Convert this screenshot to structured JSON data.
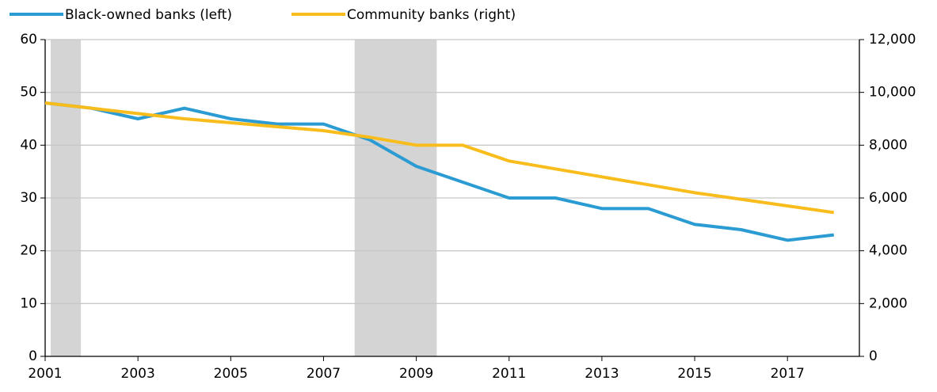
{
  "chart_data": {
    "type": "line",
    "x": [
      2001,
      2002,
      2003,
      2004,
      2005,
      2006,
      2007,
      2008,
      2009,
      2010,
      2011,
      2012,
      2013,
      2014,
      2015,
      2016,
      2017,
      2018
    ],
    "series": [
      {
        "name": "Black-owned banks (left)",
        "color": "#2b9bd3",
        "axis": "y",
        "values": [
          48,
          47,
          45,
          47,
          45,
          44,
          44,
          41,
          36,
          33,
          30,
          30,
          28,
          28,
          25,
          24,
          22,
          23
        ]
      },
      {
        "name": "Community banks (right)",
        "color": "#f8bd1c",
        "axis": "y2",
        "values": [
          9600,
          9400,
          9200,
          9000,
          8850,
          8700,
          8550,
          8300,
          8000,
          8000,
          7400,
          7100,
          6800,
          6500,
          6200,
          5950,
          5700,
          5450
        ]
      }
    ],
    "shaded_periods": [
      [
        2001.12,
        2001.77
      ],
      [
        2007.67,
        2009.44
      ]
    ],
    "shade_color": "#d4d4d4",
    "xlim": [
      2001,
      2018.55
    ],
    "xticks": [
      2001,
      2003,
      2005,
      2007,
      2009,
      2011,
      2013,
      2015,
      2017
    ],
    "ylim": [
      0,
      60
    ],
    "yticks": [
      0,
      10,
      20,
      30,
      40,
      50,
      60
    ],
    "y2lim": [
      0,
      12000
    ],
    "y2ticks": [
      0,
      {
        "value": 2000,
        "label": "2,000"
      },
      {
        "value": 4000,
        "label": "4,000"
      },
      {
        "value": 6000,
        "label": "6,000"
      },
      {
        "value": 8000,
        "label": "8,000"
      },
      {
        "value": 10000,
        "label": "10,000"
      },
      {
        "value": 12000,
        "label": "12,000"
      }
    ],
    "grid": true,
    "legend": "top"
  }
}
